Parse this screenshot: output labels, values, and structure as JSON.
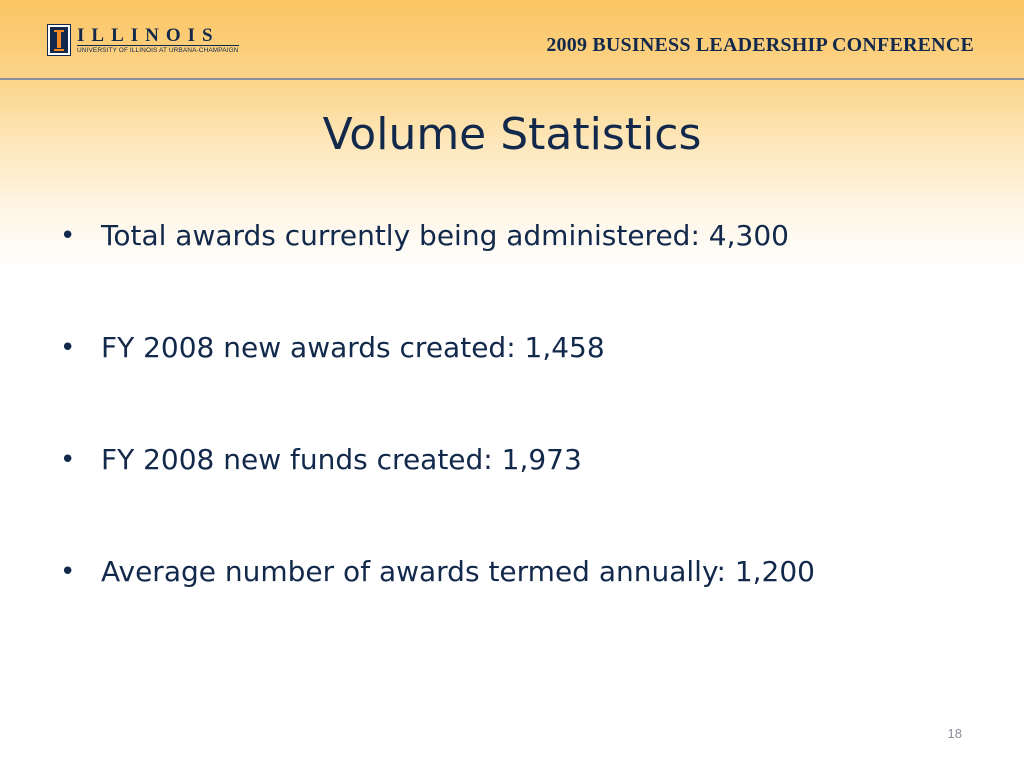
{
  "header": {
    "logo_word": "ILLINOIS",
    "logo_sub": "UNIVERSITY OF ILLINOIS AT URBANA-CHAMPAIGN",
    "conference": "2009 BUSINESS LEADERSHIP CONFERENCE"
  },
  "slide": {
    "title": "Volume Statistics",
    "bullets": [
      "Total awards currently being administered:  4,300",
      "FY 2008 new awards created:  1,458",
      "FY 2008 new funds created:  1,973",
      "Average number of awards termed annually:  1,200"
    ],
    "page_number": "18"
  },
  "colors": {
    "navy": "#13294b",
    "orange": "#f28a26",
    "header_gradient_top": "#fbc463"
  },
  "icons": {
    "logo": "illinois-block-i-icon",
    "bullet": "bullet-dot-icon"
  }
}
